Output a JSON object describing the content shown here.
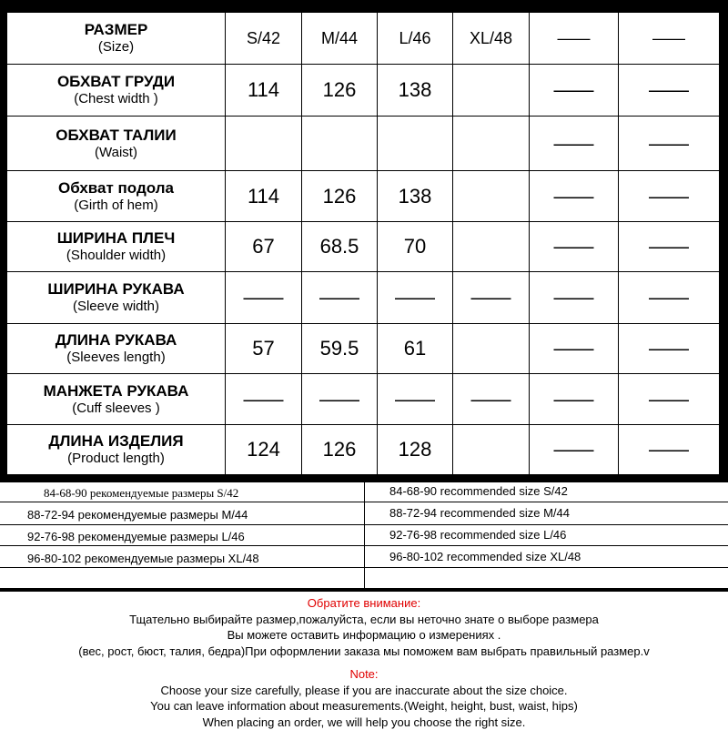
{
  "table": {
    "header": {
      "ru": "РАЗМЕР",
      "en": "(Size)",
      "sizes": [
        "S/42",
        "M/44",
        "L/46",
        "XL/48",
        "——",
        "——"
      ]
    },
    "rows": [
      {
        "ru": "ОБХВАТ ГРУДИ",
        "en": "(Chest width )",
        "values": [
          "114",
          "126",
          "138",
          "",
          "——",
          "——"
        ]
      },
      {
        "ru": "ОБХВАТ ТАЛИИ",
        "en": "(Waist)",
        "values": [
          "",
          "",
          "",
          "",
          "——",
          "——"
        ]
      },
      {
        "ru": "Обхват подола",
        "en": "(Girth of hem)",
        "values": [
          "114",
          "126",
          "138",
          "",
          "——",
          "——"
        ]
      },
      {
        "ru": "ШИРИНА ПЛЕЧ",
        "en": "(Shoulder width)",
        "values": [
          "67",
          "68.5",
          "70",
          "",
          "——",
          "——"
        ]
      },
      {
        "ru": "ШИРИНА РУКАВА",
        "en": "(Sleeve width)",
        "values": [
          "——",
          "——",
          "——",
          "——",
          "——",
          "——"
        ]
      },
      {
        "ru": "ДЛИНА РУКАВА",
        "en": "(Sleeves length)",
        "values": [
          "57",
          "59.5",
          "61",
          "",
          "——",
          "——"
        ]
      },
      {
        "ru": "МАНЖЕТА РУКАВА",
        "en": "(Cuff sleeves )",
        "values": [
          "——",
          "——",
          "——",
          "——",
          "——",
          "——"
        ]
      },
      {
        "ru": "ДЛИНА ИЗДЕЛИЯ",
        "en": "(Product length)",
        "values": [
          "124",
          "126",
          "128",
          "",
          "——",
          "——"
        ]
      }
    ]
  },
  "recommend": {
    "ru": [
      "84-68-90 рекомендуемые размеры S/42",
      "88-72-94 рекомендуемые размеры M/44",
      "92-76-98 рекомендуемые размеры L/46",
      "96-80-102 рекомендуемые размеры XL/48"
    ],
    "en": [
      "84-68-90 recommended size S/42",
      "88-72-94 recommended size M/44",
      "92-76-98 recommended size L/46",
      "96-80-102 recommended size XL/48"
    ]
  },
  "notes": {
    "ru_title": "Обратите внимание:",
    "ru_lines": [
      "Тщательно выбирайте размер,пожалуйста, если вы неточно знате о выборе размера",
      "Вы можете оставить информацию о измерениях .",
      "(вес, рост, бюст, талия, бедра)При оформлении заказа мы поможем вам выбрать правильный размер.v"
    ],
    "en_title": "Note:",
    "en_lines": [
      "Choose your size carefully, please if you are inaccurate about the size choice.",
      "You can leave information about measurements.(Weight, height, bust, waist, hips)",
      "When placing an order, we will help you choose the right size."
    ]
  },
  "colors": {
    "accent": "#e00000"
  }
}
